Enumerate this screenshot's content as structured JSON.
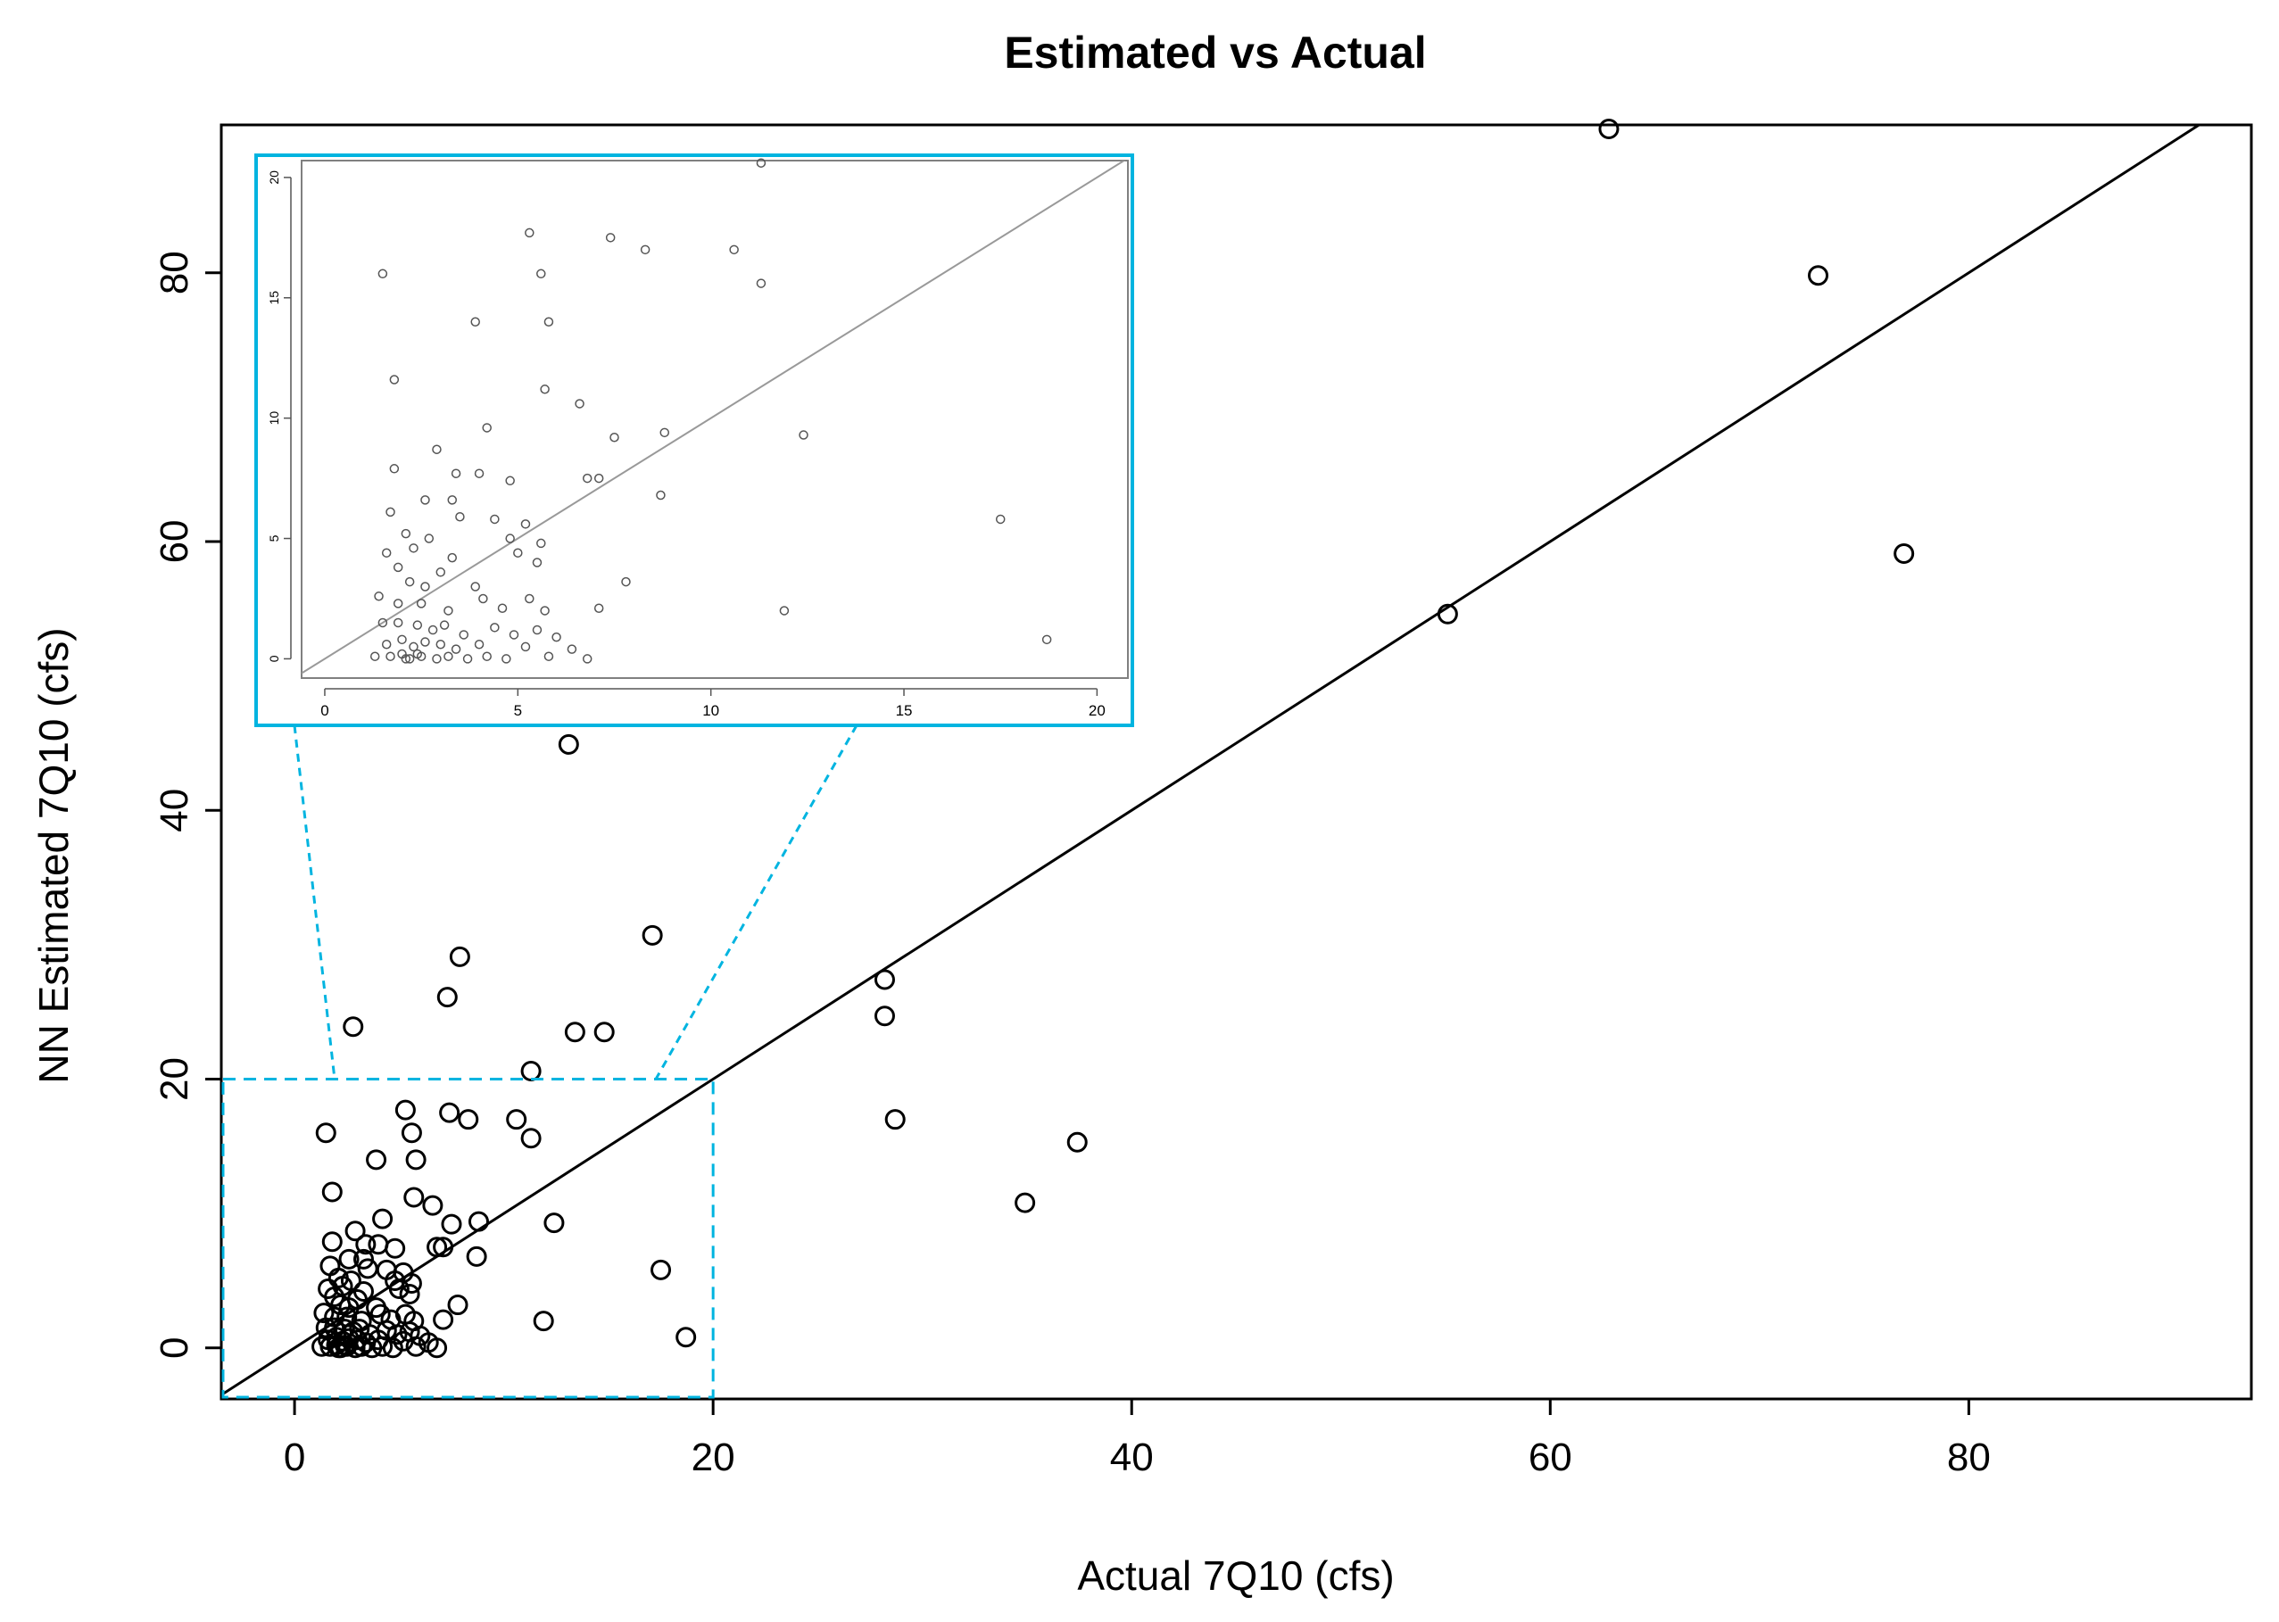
{
  "chart_data": {
    "type": "scatter",
    "title": "Estimated vs Actual",
    "xlabel": "Actual 7Q10 (cfs)",
    "ylabel": "NN Estimated 7Q10 (cfs)",
    "xlim": [
      -3.5,
      93.5
    ],
    "ylim": [
      -3.8,
      91
    ],
    "xticks": [
      0,
      20,
      40,
      60,
      80
    ],
    "yticks": [
      0,
      20,
      40,
      60,
      80
    ],
    "xtick_labels": [
      "0",
      "20",
      "40",
      "60",
      "80"
    ],
    "ytick_labels": [
      "0",
      "20",
      "40",
      "60",
      "80"
    ],
    "reference_line": "y = x",
    "grid": false,
    "legend": "none",
    "colors": {
      "points": "#000000",
      "inset_border": "#00b4e0",
      "zoom_box": "#00b4e0",
      "inset_line": "#999999"
    },
    "points": [
      {
        "x": 62.8,
        "y": 90.7
      },
      {
        "x": 72.8,
        "y": 79.8
      },
      {
        "x": 76.9,
        "y": 59.1
      },
      {
        "x": 55.1,
        "y": 54.6
      },
      {
        "x": 13.1,
        "y": 44.9
      },
      {
        "x": 17.1,
        "y": 30.7
      },
      {
        "x": 7.9,
        "y": 29.1
      },
      {
        "x": 28.2,
        "y": 27.4
      },
      {
        "x": 7.3,
        "y": 26.1
      },
      {
        "x": 28.2,
        "y": 24.7
      },
      {
        "x": 2.8,
        "y": 23.9
      },
      {
        "x": 13.4,
        "y": 23.5
      },
      {
        "x": 14.8,
        "y": 23.5
      },
      {
        "x": 11.3,
        "y": 20.6
      },
      {
        "x": 5.3,
        "y": 17.7
      },
      {
        "x": 7.4,
        "y": 17.5
      },
      {
        "x": 8.3,
        "y": 17.0
      },
      {
        "x": 10.6,
        "y": 17.0
      },
      {
        "x": 28.7,
        "y": 17.0
      },
      {
        "x": 1.5,
        "y": 16.0
      },
      {
        "x": 5.6,
        "y": 16.0
      },
      {
        "x": 11.3,
        "y": 15.6
      },
      {
        "x": 37.4,
        "y": 15.3
      },
      {
        "x": 3.9,
        "y": 14.0
      },
      {
        "x": 5.8,
        "y": 14.0
      },
      {
        "x": 1.8,
        "y": 11.6
      },
      {
        "x": 5.7,
        "y": 11.2
      },
      {
        "x": 6.6,
        "y": 10.6
      },
      {
        "x": 34.9,
        "y": 10.8
      },
      {
        "x": 4.2,
        "y": 9.6
      },
      {
        "x": 7.5,
        "y": 9.2
      },
      {
        "x": 8.8,
        "y": 9.4
      },
      {
        "x": 12.4,
        "y": 9.3
      },
      {
        "x": 2.9,
        "y": 8.7
      },
      {
        "x": 1.8,
        "y": 7.9
      },
      {
        "x": 3.4,
        "y": 7.7
      },
      {
        "x": 4.0,
        "y": 7.7
      },
      {
        "x": 4.8,
        "y": 7.4
      },
      {
        "x": 6.8,
        "y": 7.5
      },
      {
        "x": 7.1,
        "y": 7.5
      },
      {
        "x": 8.7,
        "y": 6.8
      },
      {
        "x": 2.6,
        "y": 6.6
      },
      {
        "x": 3.3,
        "y": 6.6
      },
      {
        "x": 1.7,
        "y": 6.1
      },
      {
        "x": 3.5,
        "y": 5.9
      },
      {
        "x": 4.4,
        "y": 5.8
      },
      {
        "x": 5.2,
        "y": 5.6
      },
      {
        "x": 17.5,
        "y": 5.8
      },
      {
        "x": 2.1,
        "y": 5.2
      },
      {
        "x": 2.7,
        "y": 5.0
      },
      {
        "x": 4.8,
        "y": 5.0
      },
      {
        "x": 5.6,
        "y": 4.8
      },
      {
        "x": 1.6,
        "y": 4.4
      },
      {
        "x": 2.3,
        "y": 4.6
      },
      {
        "x": 3.3,
        "y": 4.2
      },
      {
        "x": 5.0,
        "y": 4.4
      },
      {
        "x": 5.5,
        "y": 4.0
      },
      {
        "x": 1.9,
        "y": 3.8
      },
      {
        "x": 2.2,
        "y": 3.2
      },
      {
        "x": 2.6,
        "y": 3.0
      },
      {
        "x": 3.0,
        "y": 3.6
      },
      {
        "x": 3.9,
        "y": 3.0
      },
      {
        "x": 7.8,
        "y": 3.2
      },
      {
        "x": 1.4,
        "y": 2.6
      },
      {
        "x": 1.9,
        "y": 2.3
      },
      {
        "x": 2.5,
        "y": 2.3
      },
      {
        "x": 3.2,
        "y": 2.0
      },
      {
        "x": 4.1,
        "y": 2.5
      },
      {
        "x": 4.6,
        "y": 2.1
      },
      {
        "x": 5.3,
        "y": 2.5
      },
      {
        "x": 5.7,
        "y": 2.0
      },
      {
        "x": 7.1,
        "y": 2.1
      },
      {
        "x": 11.9,
        "y": 2.0
      },
      {
        "x": 1.5,
        "y": 1.5
      },
      {
        "x": 1.9,
        "y": 1.5
      },
      {
        "x": 2.4,
        "y": 1.4
      },
      {
        "x": 2.8,
        "y": 1.2
      },
      {
        "x": 3.1,
        "y": 1.4
      },
      {
        "x": 3.6,
        "y": 1.0
      },
      {
        "x": 4.4,
        "y": 1.3
      },
      {
        "x": 4.9,
        "y": 1.0
      },
      {
        "x": 5.5,
        "y": 1.2
      },
      {
        "x": 6.0,
        "y": 0.9
      },
      {
        "x": 1.6,
        "y": 0.6
      },
      {
        "x": 2.0,
        "y": 0.8
      },
      {
        "x": 2.3,
        "y": 0.5
      },
      {
        "x": 2.6,
        "y": 0.7
      },
      {
        "x": 3.0,
        "y": 0.6
      },
      {
        "x": 3.4,
        "y": 0.4
      },
      {
        "x": 4.0,
        "y": 0.6
      },
      {
        "x": 5.2,
        "y": 0.5
      },
      {
        "x": 6.4,
        "y": 0.4
      },
      {
        "x": 18.7,
        "y": 0.8
      },
      {
        "x": 1.3,
        "y": 0.1
      },
      {
        "x": 1.7,
        "y": 0.1
      },
      {
        "x": 2.0,
        "y": 0.2
      },
      {
        "x": 2.2,
        "y": 0.0
      },
      {
        "x": 2.5,
        "y": 0.1
      },
      {
        "x": 2.9,
        "y": 0.0
      },
      {
        "x": 3.2,
        "y": 0.1
      },
      {
        "x": 3.7,
        "y": 0.0
      },
      {
        "x": 4.2,
        "y": 0.1
      },
      {
        "x": 4.7,
        "y": 0.0
      },
      {
        "x": 5.8,
        "y": 0.1
      },
      {
        "x": 6.8,
        "y": 0.0
      },
      {
        "x": 2.1,
        "y": 0.0
      },
      {
        "x": 2.4,
        "y": 0.2
      }
    ],
    "inset": {
      "xlim": [
        -0.6,
        20.8
      ],
      "ylim": [
        -0.8,
        20.7
      ],
      "xticks": [
        0,
        5,
        10,
        15,
        20
      ],
      "yticks": [
        0,
        5,
        10,
        15,
        20
      ],
      "xtick_labels": [
        "0",
        "5",
        "10",
        "15",
        "20"
      ],
      "ytick_labels": [
        "0",
        "5",
        "10",
        "15",
        "20"
      ],
      "zoom_region": {
        "x": [
          -3.5,
          20
        ],
        "y": [
          -3.8,
          20
        ]
      },
      "reference_line": "y = x",
      "points": [
        {
          "x": 11.3,
          "y": 20.6
        },
        {
          "x": 5.3,
          "y": 17.7
        },
        {
          "x": 7.4,
          "y": 17.5
        },
        {
          "x": 8.3,
          "y": 17.0
        },
        {
          "x": 10.6,
          "y": 17.0
        },
        {
          "x": 1.5,
          "y": 16.0
        },
        {
          "x": 5.6,
          "y": 16.0
        },
        {
          "x": 11.3,
          "y": 15.6
        },
        {
          "x": 3.9,
          "y": 14.0
        },
        {
          "x": 5.8,
          "y": 14.0
        },
        {
          "x": 1.8,
          "y": 11.6
        },
        {
          "x": 5.7,
          "y": 11.2
        },
        {
          "x": 6.6,
          "y": 10.6
        },
        {
          "x": 7.5,
          "y": 9.2
        },
        {
          "x": 4.2,
          "y": 9.6
        },
        {
          "x": 8.8,
          "y": 9.4
        },
        {
          "x": 12.4,
          "y": 9.3
        },
        {
          "x": 2.9,
          "y": 8.7
        },
        {
          "x": 1.8,
          "y": 7.9
        },
        {
          "x": 3.4,
          "y": 7.7
        },
        {
          "x": 4.0,
          "y": 7.7
        },
        {
          "x": 4.8,
          "y": 7.4
        },
        {
          "x": 6.8,
          "y": 7.5
        },
        {
          "x": 7.1,
          "y": 7.5
        },
        {
          "x": 8.7,
          "y": 6.8
        },
        {
          "x": 2.6,
          "y": 6.6
        },
        {
          "x": 3.3,
          "y": 6.6
        },
        {
          "x": 1.7,
          "y": 6.1
        },
        {
          "x": 3.5,
          "y": 5.9
        },
        {
          "x": 4.4,
          "y": 5.8
        },
        {
          "x": 5.2,
          "y": 5.6
        },
        {
          "x": 17.5,
          "y": 5.8
        },
        {
          "x": 2.1,
          "y": 5.2
        },
        {
          "x": 2.7,
          "y": 5.0
        },
        {
          "x": 4.8,
          "y": 5.0
        },
        {
          "x": 5.6,
          "y": 4.8
        },
        {
          "x": 1.6,
          "y": 4.4
        },
        {
          "x": 2.3,
          "y": 4.6
        },
        {
          "x": 3.3,
          "y": 4.2
        },
        {
          "x": 5.0,
          "y": 4.4
        },
        {
          "x": 5.5,
          "y": 4.0
        },
        {
          "x": 1.9,
          "y": 3.8
        },
        {
          "x": 2.2,
          "y": 3.2
        },
        {
          "x": 2.6,
          "y": 3.0
        },
        {
          "x": 3.0,
          "y": 3.6
        },
        {
          "x": 3.9,
          "y": 3.0
        },
        {
          "x": 7.8,
          "y": 3.2
        },
        {
          "x": 1.4,
          "y": 2.6
        },
        {
          "x": 1.9,
          "y": 2.3
        },
        {
          "x": 2.5,
          "y": 2.3
        },
        {
          "x": 3.2,
          "y": 2.0
        },
        {
          "x": 4.1,
          "y": 2.5
        },
        {
          "x": 4.6,
          "y": 2.1
        },
        {
          "x": 5.3,
          "y": 2.5
        },
        {
          "x": 5.7,
          "y": 2.0
        },
        {
          "x": 7.1,
          "y": 2.1
        },
        {
          "x": 11.9,
          "y": 2.0
        },
        {
          "x": 1.5,
          "y": 1.5
        },
        {
          "x": 1.9,
          "y": 1.5
        },
        {
          "x": 2.4,
          "y": 1.4
        },
        {
          "x": 2.8,
          "y": 1.2
        },
        {
          "x": 3.1,
          "y": 1.4
        },
        {
          "x": 3.6,
          "y": 1.0
        },
        {
          "x": 4.4,
          "y": 1.3
        },
        {
          "x": 4.9,
          "y": 1.0
        },
        {
          "x": 5.5,
          "y": 1.2
        },
        {
          "x": 6.0,
          "y": 0.9
        },
        {
          "x": 1.6,
          "y": 0.6
        },
        {
          "x": 2.0,
          "y": 0.8
        },
        {
          "x": 2.3,
          "y": 0.5
        },
        {
          "x": 2.6,
          "y": 0.7
        },
        {
          "x": 3.0,
          "y": 0.6
        },
        {
          "x": 3.4,
          "y": 0.4
        },
        {
          "x": 4.0,
          "y": 0.6
        },
        {
          "x": 5.2,
          "y": 0.5
        },
        {
          "x": 6.4,
          "y": 0.4
        },
        {
          "x": 18.7,
          "y": 0.8
        },
        {
          "x": 1.3,
          "y": 0.1
        },
        {
          "x": 1.7,
          "y": 0.1
        },
        {
          "x": 2.0,
          "y": 0.2
        },
        {
          "x": 2.2,
          "y": 0.0
        },
        {
          "x": 2.5,
          "y": 0.1
        },
        {
          "x": 2.9,
          "y": 0.0
        },
        {
          "x": 3.2,
          "y": 0.1
        },
        {
          "x": 3.7,
          "y": 0.0
        },
        {
          "x": 4.2,
          "y": 0.1
        },
        {
          "x": 4.7,
          "y": 0.0
        },
        {
          "x": 5.8,
          "y": 0.1
        },
        {
          "x": 6.8,
          "y": 0.0
        },
        {
          "x": 2.1,
          "y": 0.0
        },
        {
          "x": 2.4,
          "y": 0.2
        }
      ]
    }
  }
}
